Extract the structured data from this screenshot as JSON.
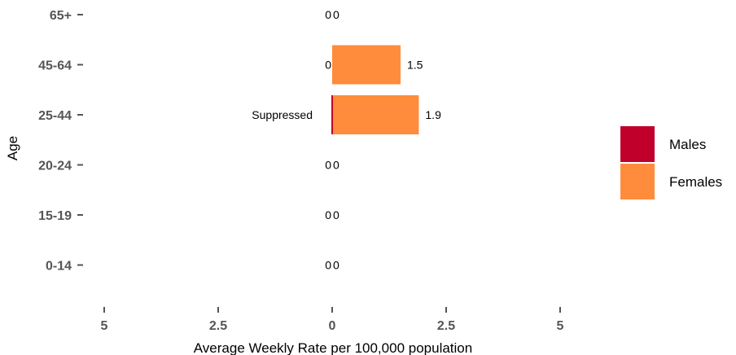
{
  "chart_data": {
    "type": "bar",
    "orientation": "horizontal-population-pyramid",
    "categories": [
      "0-14",
      "15-19",
      "20-24",
      "25-44",
      "45-64",
      "65+"
    ],
    "series": [
      {
        "name": "Males",
        "color": "#c0002a",
        "values": [
          0,
          0,
          0,
          null,
          0,
          0
        ],
        "labels": [
          "0",
          "0",
          "0",
          "Suppressed",
          "0",
          "0"
        ]
      },
      {
        "name": "Females",
        "color": "#ff8c3c",
        "values": [
          0,
          0,
          0,
          1.9,
          1.5,
          0
        ],
        "labels": [
          "0",
          "0",
          "0",
          "1.9",
          "1.5",
          "0"
        ]
      }
    ],
    "x_ticks": [
      {
        "value": -5,
        "label": "5"
      },
      {
        "value": -2.5,
        "label": "2.5"
      },
      {
        "value": 0,
        "label": "0"
      },
      {
        "value": 2.5,
        "label": "2.5"
      },
      {
        "value": 5,
        "label": "5"
      }
    ],
    "xlim": [
      -5,
      5
    ],
    "xlabel": "Average Weekly Rate per 100,000 population",
    "ylabel": "Age",
    "legend_position": "right",
    "grid": false
  }
}
